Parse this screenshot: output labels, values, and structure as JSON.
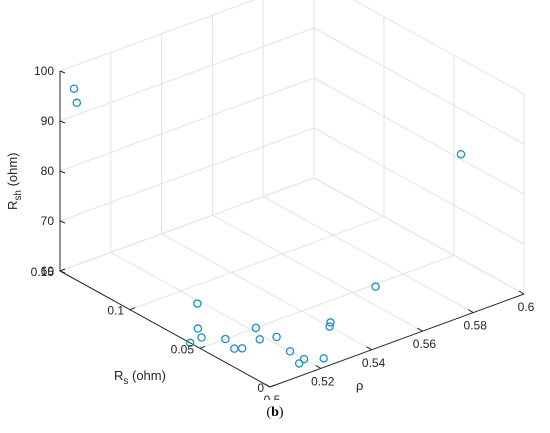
{
  "caption": {
    "open": "(",
    "label": "b",
    "close": ")"
  },
  "chart_data": {
    "type": "scatter",
    "projection": "3d",
    "marker": "circle-open",
    "color": "#1f8fc0",
    "grid": true,
    "x": {
      "label": "ρ",
      "range": [
        0.5,
        0.6
      ],
      "ticks": [
        "0.5",
        "0.52",
        "0.54",
        "0.56",
        "0.58",
        "0.6"
      ]
    },
    "y": {
      "label_main": "R",
      "label_sub": "s",
      "label_rest": " (ohm)",
      "range": [
        0,
        0.15
      ],
      "ticks": [
        "0",
        "0.05",
        "0.1",
        "0.15"
      ]
    },
    "z": {
      "label_main": "R",
      "label_sub": "sh",
      "label_rest": " (ohm)",
      "range": [
        60,
        100
      ],
      "ticks": [
        "60",
        "70",
        "80",
        "90",
        "100"
      ]
    },
    "points": [
      {
        "x": 0.5,
        "y": 0.14,
        "z": 98.0
      },
      {
        "x": 0.5,
        "y": 0.138,
        "z": 95.5
      },
      {
        "x": 0.51,
        "y": 0.07,
        "z": 64.0
      },
      {
        "x": 0.508,
        "y": 0.066,
        "z": 60.0
      },
      {
        "x": 0.5,
        "y": 0.057,
        "z": 60.0
      },
      {
        "x": 0.505,
        "y": 0.058,
        "z": 60.0
      },
      {
        "x": 0.51,
        "y": 0.05,
        "z": 60.0
      },
      {
        "x": 0.508,
        "y": 0.04,
        "z": 60.0
      },
      {
        "x": 0.51,
        "y": 0.038,
        "z": 60.0
      },
      {
        "x": 0.522,
        "y": 0.05,
        "z": 60.0
      },
      {
        "x": 0.518,
        "y": 0.04,
        "z": 60.0
      },
      {
        "x": 0.523,
        "y": 0.037,
        "z": 60.0
      },
      {
        "x": 0.52,
        "y": 0.022,
        "z": 60.0
      },
      {
        "x": 0.517,
        "y": 0.01,
        "z": 60.0
      },
      {
        "x": 0.52,
        "y": 0.012,
        "z": 60.0
      },
      {
        "x": 0.525,
        "y": 0.007,
        "z": 60.0
      },
      {
        "x": 0.54,
        "y": 0.03,
        "z": 60.0
      },
      {
        "x": 0.542,
        "y": 0.033,
        "z": 60.0
      },
      {
        "x": 0.568,
        "y": 0.048,
        "z": 60.0
      },
      {
        "x": 0.6,
        "y": 0.045,
        "z": 81.0
      }
    ]
  }
}
